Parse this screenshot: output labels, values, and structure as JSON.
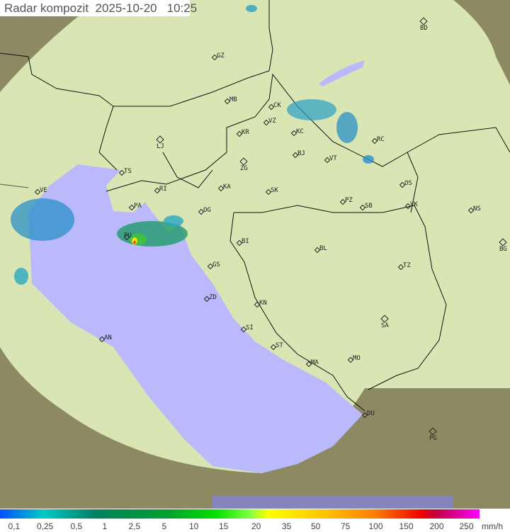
{
  "header": {
    "title": "Radar kompozit",
    "date": "2025-10-20",
    "time": "10:25"
  },
  "colors": {
    "sea": "#b9b9fb",
    "land": "#d9e6b3",
    "outside_land": "#8d8a63",
    "outside_sea": "#8585bd",
    "border": "#111111"
  },
  "cities": [
    {
      "code": "BD",
      "big": true
    },
    {
      "code": "GZ"
    },
    {
      "code": "MB"
    },
    {
      "code": "CK"
    },
    {
      "code": "VZ"
    },
    {
      "code": "LJ",
      "big": true
    },
    {
      "code": "KR"
    },
    {
      "code": "KC"
    },
    {
      "code": "RC"
    },
    {
      "code": "TS"
    },
    {
      "code": "ZG",
      "big": true
    },
    {
      "code": "BJ"
    },
    {
      "code": "VT"
    },
    {
      "code": "VE"
    },
    {
      "code": "RI"
    },
    {
      "code": "KA"
    },
    {
      "code": "SK"
    },
    {
      "code": "OS"
    },
    {
      "code": "PA"
    },
    {
      "code": "OG"
    },
    {
      "code": "PZ"
    },
    {
      "code": "SB"
    },
    {
      "code": "VK"
    },
    {
      "code": "NS"
    },
    {
      "code": "PU"
    },
    {
      "code": "BI"
    },
    {
      "code": "BL"
    },
    {
      "code": "BG",
      "big": true
    },
    {
      "code": "GS"
    },
    {
      "code": "TZ"
    },
    {
      "code": "ZD"
    },
    {
      "code": "KN"
    },
    {
      "code": "SA",
      "big": true
    },
    {
      "code": "AN"
    },
    {
      "code": "SI"
    },
    {
      "code": "ST"
    },
    {
      "code": "MO"
    },
    {
      "code": "MA"
    },
    {
      "code": "DU"
    },
    {
      "code": "PG",
      "big": true
    }
  ],
  "legend": {
    "unit": "mm/h",
    "labels": [
      "0,1",
      "0,25",
      "0,5",
      "1",
      "2,5",
      "5",
      "10",
      "15",
      "20",
      "35",
      "50",
      "75",
      "100",
      "150",
      "200",
      "250"
    ]
  }
}
